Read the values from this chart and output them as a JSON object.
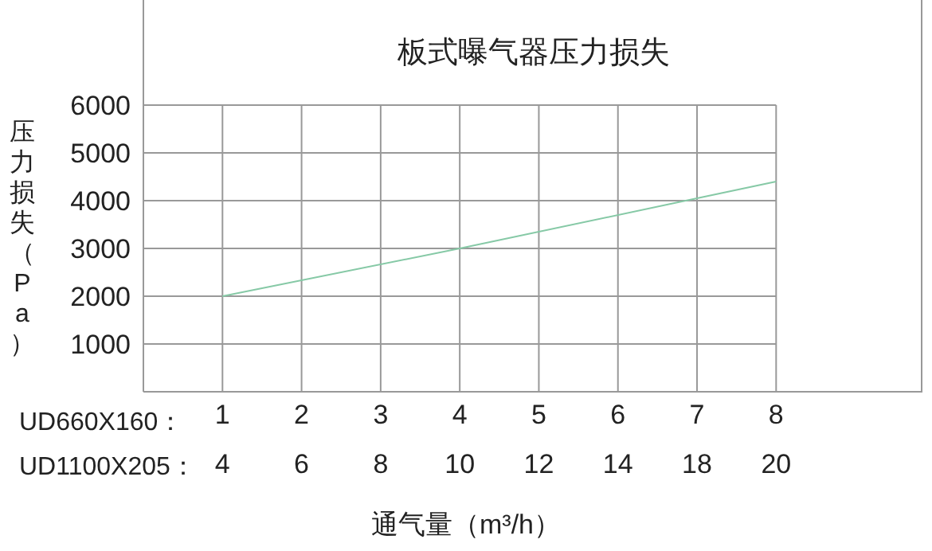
{
  "chart_data": {
    "type": "line",
    "title": "板式曝气器压力损失",
    "xlabel": "通气量（m³/h）",
    "ylabel": "压力损失（Pa）",
    "x": [
      1,
      4,
      7,
      8
    ],
    "series": [
      {
        "color": "#86c9a6",
        "values": [
          2000,
          3000,
          4050,
          4400
        ]
      }
    ],
    "xlim": [
      0,
      9.85
    ],
    "xticks": [
      1,
      2,
      3,
      4,
      5,
      6,
      7,
      8
    ],
    "ylim": [
      0,
      8200
    ],
    "yticks": [
      1000,
      2000,
      3000,
      4000,
      5000,
      6000
    ],
    "annotations": [
      "UD660X160：",
      "UD1100X205：",
      "4",
      "6",
      "8",
      "10",
      "12",
      "14",
      "18",
      "20"
    ],
    "grid": true,
    "marker": "none",
    "line_style": "solid"
  }
}
